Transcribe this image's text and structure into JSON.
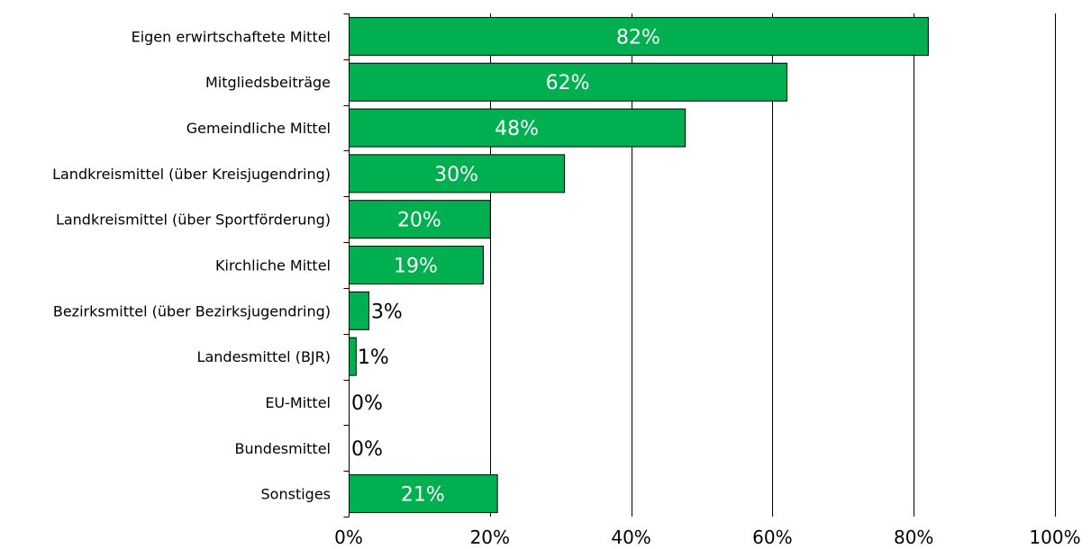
{
  "chart_data": {
    "type": "bar",
    "orientation": "horizontal",
    "categories": [
      "Eigen erwirtschaftete Mittel",
      "Mitgliedsbeiträge",
      "Gemeindliche Mittel",
      "Landkreismittel (über Kreisjugendring)",
      "Landkreismittel (über Sportförderung)",
      "Kirchliche Mittel",
      "Bezirksmittel (über Bezirksjugendring)",
      "Landesmittel (BJR)",
      "EU-Mittel",
      "Bundesmittel",
      "Sonstiges"
    ],
    "values": [
      82,
      62,
      47.6,
      30.5,
      20,
      19,
      2.8,
      1,
      0,
      0,
      21
    ],
    "data_labels": [
      "82%",
      "62%",
      "48%",
      "30%",
      "20%",
      "19%",
      "3%",
      "1%",
      "0%",
      "0%",
      "21%"
    ],
    "xlim": [
      0,
      100
    ],
    "xticks": [
      0,
      20,
      40,
      60,
      80,
      100
    ],
    "xtick_labels": [
      "0%",
      "20%",
      "40%",
      "60%",
      "80%",
      "100%"
    ],
    "grid": "vertical",
    "legend": "none",
    "colors": {
      "bar": "#00b050",
      "bar_border": "#000000",
      "grid": "#000000"
    }
  }
}
